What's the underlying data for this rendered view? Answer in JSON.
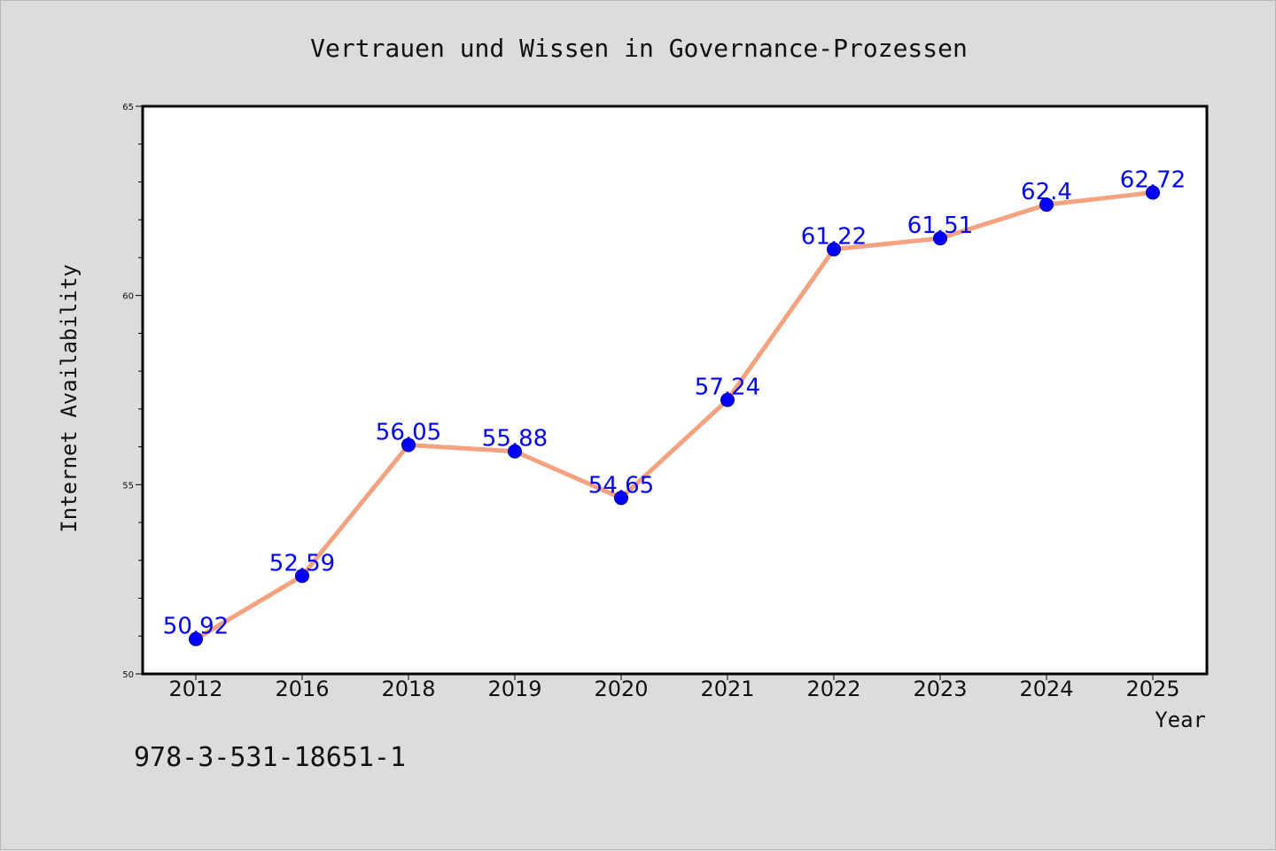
{
  "chart_data": {
    "type": "line",
    "title": "Vertrauen und Wissen in Governance-Prozessen",
    "xlabel": "Year",
    "ylabel": "Internet Availability",
    "categories": [
      "2012",
      "2016",
      "2018",
      "2019",
      "2020",
      "2021",
      "2022",
      "2023",
      "2024",
      "2025"
    ],
    "series": [
      {
        "values": [
          50.92,
          52.59,
          56.05,
          55.88,
          54.65,
          57.24,
          61.22,
          61.51,
          62.4,
          62.72
        ],
        "data_labels": [
          "50.92",
          "52.59",
          "56.05",
          "55.88",
          "54.65",
          "57.24",
          "61.22",
          "61.51",
          "62.4",
          "62.72"
        ]
      }
    ],
    "ylim": [
      50,
      65
    ],
    "y_major_ticks": [
      50,
      55,
      60,
      65
    ],
    "y_minor_step": 1,
    "grid": false,
    "colors": {
      "background": "#dcdcdc",
      "plot_background": "#ffffff",
      "line": "#f4a27f",
      "marker": "#0000ff",
      "data_label": "#0000ff"
    }
  },
  "footer_text": "978-3-531-18651-1"
}
